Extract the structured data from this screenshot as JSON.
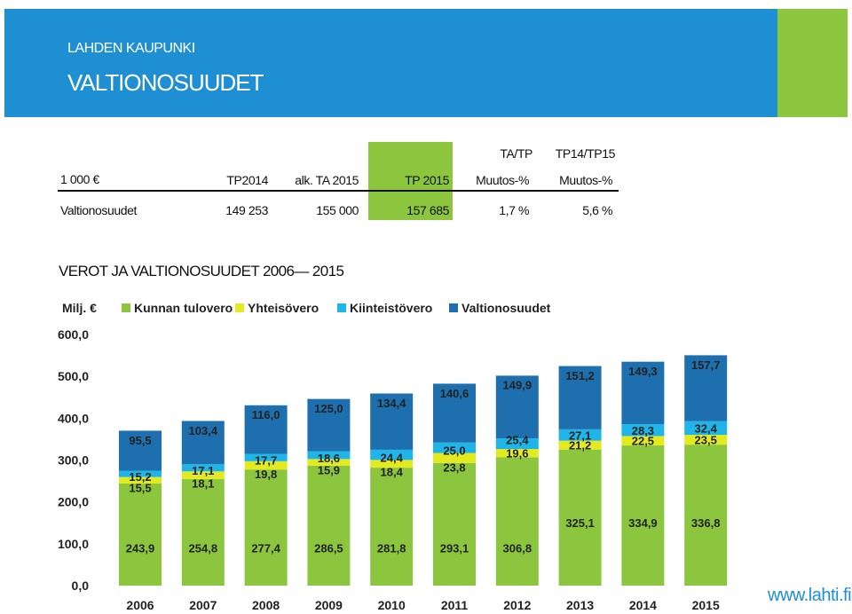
{
  "header": {
    "organization": "LAHDEN KAUPUNKI",
    "title": "VALTIONOSUUDET"
  },
  "summary_table": {
    "unit": "1 000 €",
    "group_headers": [
      "TA/TP",
      "TP14/TP15"
    ],
    "columns": [
      "TP2014",
      "alk. TA 2015",
      "TP 2015",
      "Muutos-%",
      "Muutos-%"
    ],
    "row": {
      "label": "Valtionosuudet",
      "values": [
        "149 253",
        "155 000",
        "157 685",
        "1,7 %",
        "5,6 %"
      ]
    }
  },
  "section_title": "VEROT JA VALTIONOSUUDET 2006— 2015",
  "footer": {
    "website": "www.lahti.fi"
  },
  "chart_data": {
    "type": "bar",
    "stacked": true,
    "unit_label": "Milj. €",
    "categories": [
      "2006",
      "2007",
      "2008",
      "2009",
      "2010",
      "2011",
      "2012",
      "2013",
      "2014",
      "2015"
    ],
    "series": [
      {
        "name": "Kunnan tulovero",
        "color": "#8cc63f",
        "values": [
          243.9,
          254.8,
          277.4,
          286.5,
          281.8,
          293.1,
          306.8,
          325.1,
          334.9,
          336.8
        ],
        "labels": [
          "243,9",
          "254,8",
          "277,4",
          "286,5",
          "281,8",
          "293,1",
          "306,8",
          "325,1",
          "334,9",
          "336,8"
        ]
      },
      {
        "name": "Yhteisövero",
        "color": "#e3ea1f",
        "values": [
          15.5,
          18.1,
          19.8,
          15.9,
          18.4,
          23.8,
          19.6,
          21.2,
          22.5,
          23.5
        ],
        "labels": [
          "15,5",
          "18,1",
          "19,8",
          "15,9",
          "18,4",
          "23,8",
          "19,6",
          "21,2",
          "22,5",
          "23,5"
        ]
      },
      {
        "name": "Kiinteistövero",
        "color": "#1fb5e8",
        "values": [
          15.2,
          17.1,
          17.7,
          18.6,
          24.4,
          25.0,
          25.4,
          27.1,
          28.3,
          32.4
        ],
        "labels": [
          "15,2",
          "17,1",
          "17,7",
          "18,6",
          "24,4",
          "25,0",
          "25,4",
          "27,1",
          "28,3",
          "32,4"
        ]
      },
      {
        "name": "Valtionosuudet",
        "color": "#1e6fae",
        "values": [
          95.5,
          103.4,
          116.0,
          125.0,
          134.4,
          140.6,
          149.9,
          151.2,
          149.3,
          157.7
        ],
        "labels": [
          "95,5",
          "103,4",
          "116,0",
          "125,0",
          "134,4",
          "140,6",
          "149,9",
          "151,2",
          "149,3",
          "157,7"
        ]
      }
    ],
    "ylim": [
      0,
      600
    ],
    "yticks": [
      0,
      100,
      200,
      300,
      400,
      500,
      600
    ],
    "ytick_labels": [
      "0,0",
      "100,0",
      "200,0",
      "300,0",
      "400,0",
      "500,0",
      "600,0"
    ],
    "legend_position": "top-left"
  }
}
